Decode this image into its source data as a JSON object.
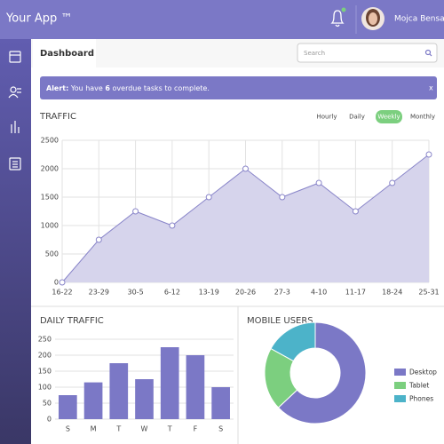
{
  "header": {
    "app_name": "Your App ™",
    "user_name": "Mojca Bensa"
  },
  "tab": "Dashboard",
  "search_placeholder": "Search",
  "alert": {
    "label": "Alert:",
    "text_before": "You have ",
    "count": 6,
    "text_after": " overdue tasks to complete.",
    "close": "x"
  },
  "traffic": {
    "type": "line",
    "title": "TRAFFIC",
    "ranges": [
      "Hourly",
      "Daily",
      "Weekly",
      "Monthly"
    ],
    "active_range": "Weekly",
    "categories": [
      "16-22",
      "23-29",
      "30-5",
      "6-12",
      "13-19",
      "20-26",
      "27-3",
      "4-10",
      "11-17",
      "18-24",
      "25-31"
    ],
    "values": [
      0,
      750,
      1250,
      1000,
      1500,
      2000,
      1500,
      1750,
      1250,
      1750,
      2250
    ],
    "color": "#8985c9",
    "fill": "#d6d4ec",
    "ylim": [
      0,
      2500
    ],
    "yticks": [
      0,
      500,
      1000,
      1500,
      2000,
      2500
    ],
    "grid": true
  },
  "daily_traffic": {
    "type": "bar",
    "title": "DAILY TRAFFIC",
    "categories": [
      "S",
      "M",
      "T",
      "W",
      "T",
      "F",
      "S"
    ],
    "values": [
      75,
      115,
      175,
      125,
      225,
      200,
      100
    ],
    "color": "#7b78c6",
    "ylim": [
      0,
      250
    ],
    "yticks": [
      0,
      50,
      100,
      150,
      200,
      250
    ],
    "grid": true
  },
  "mobile_users": {
    "type": "donut",
    "title": "MOBILE USERS",
    "categories": [
      "Desktop",
      "Tablet",
      "Phones"
    ],
    "values": [
      63,
      20,
      17
    ],
    "colors": [
      "#7b78c6",
      "#7ccf7f",
      "#4cb3c9"
    ]
  }
}
